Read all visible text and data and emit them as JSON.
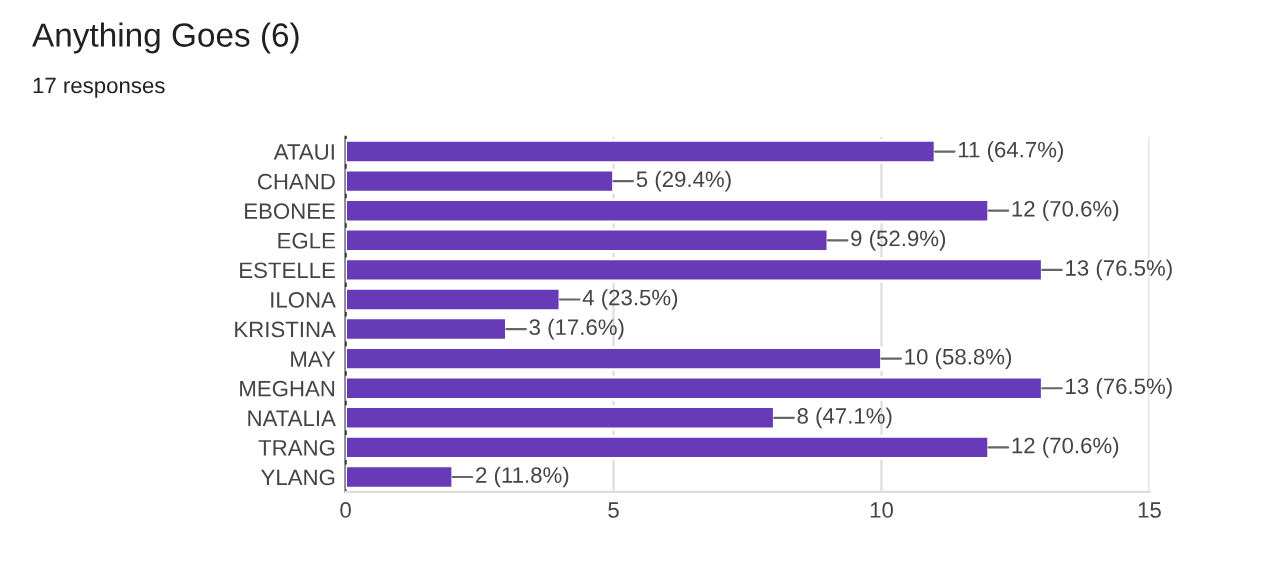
{
  "chart_data": {
    "type": "bar",
    "orientation": "horizontal",
    "title": "Anything Goes (6)",
    "subtitle": "17 responses",
    "categories": [
      "ATAUI",
      "CHAND",
      "EBONEE",
      "EGLE",
      "ESTELLE",
      "ILONA",
      "KRISTINA",
      "MAY",
      "MEGHAN",
      "NATALIA",
      "TRANG",
      "YLANG"
    ],
    "values": [
      11,
      5,
      12,
      9,
      13,
      4,
      3,
      10,
      13,
      8,
      12,
      2
    ],
    "value_labels": [
      "11 (64.7%)",
      "5 (29.4%)",
      "12 (70.6%)",
      "9 (52.9%)",
      "13 (76.5%)",
      "4 (23.5%)",
      "3 (17.6%)",
      "10 (58.8%)",
      "13 (76.5%)",
      "8 (47.1%)",
      "12 (70.6%)",
      "2 (11.8%)"
    ],
    "color": "#673ab7",
    "xlim": [
      0,
      15
    ],
    "xticks": [
      0,
      5,
      10,
      15
    ],
    "grid": "x",
    "legend": false
  }
}
